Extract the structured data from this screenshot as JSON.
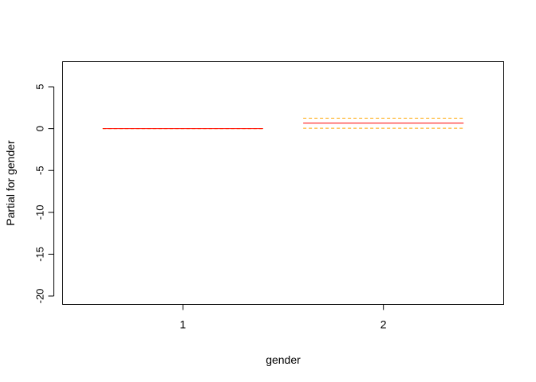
{
  "chart_data": {
    "type": "line",
    "xlabel": "gender",
    "ylabel": "Partial for gender",
    "categories": [
      "1",
      "2"
    ],
    "ylim": [
      -21,
      8
    ],
    "yticks": [
      5,
      0,
      -5,
      -10,
      -15,
      -20
    ],
    "grid": false,
    "legend": "none",
    "series": [
      {
        "role": "fit",
        "color": "#ff0000",
        "style": "solid",
        "values": [
          0.0,
          0.65
        ]
      },
      {
        "role": "upper",
        "color": "#ffa500",
        "style": "dashed",
        "values": [
          0.0,
          1.25
        ]
      },
      {
        "role": "lower",
        "color": "#ffa500",
        "style": "dashed",
        "values": [
          0.0,
          0.05
        ]
      }
    ]
  }
}
